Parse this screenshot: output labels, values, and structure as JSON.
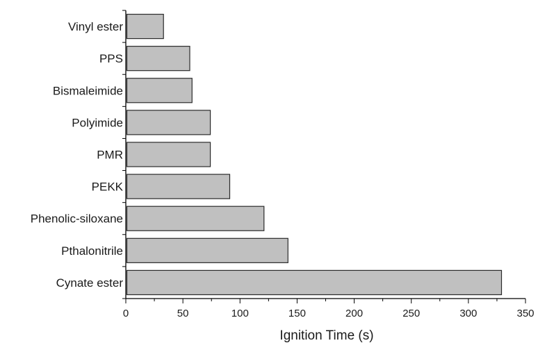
{
  "chart_data": {
    "type": "bar",
    "orientation": "horizontal",
    "categories": [
      "Vinyl ester",
      "PPS",
      "Bismaleimide",
      "Polyimide",
      "PMR",
      "PEKK",
      "Phenolic-siloxane",
      "Pthalonitrile",
      "Cynate ester"
    ],
    "values": [
      33,
      56,
      58,
      74,
      74,
      91,
      121,
      142,
      329
    ],
    "xlabel": "Ignition Time (s)",
    "ylabel": "",
    "xlim": [
      0,
      350
    ],
    "xticks": [
      0,
      50,
      100,
      150,
      200,
      250,
      300,
      350
    ],
    "colors": {
      "bar_fill": "#c0c0c0",
      "bar_stroke": "#2a2a2a",
      "axis": "#000000"
    },
    "grid": false,
    "legend": "none"
  }
}
